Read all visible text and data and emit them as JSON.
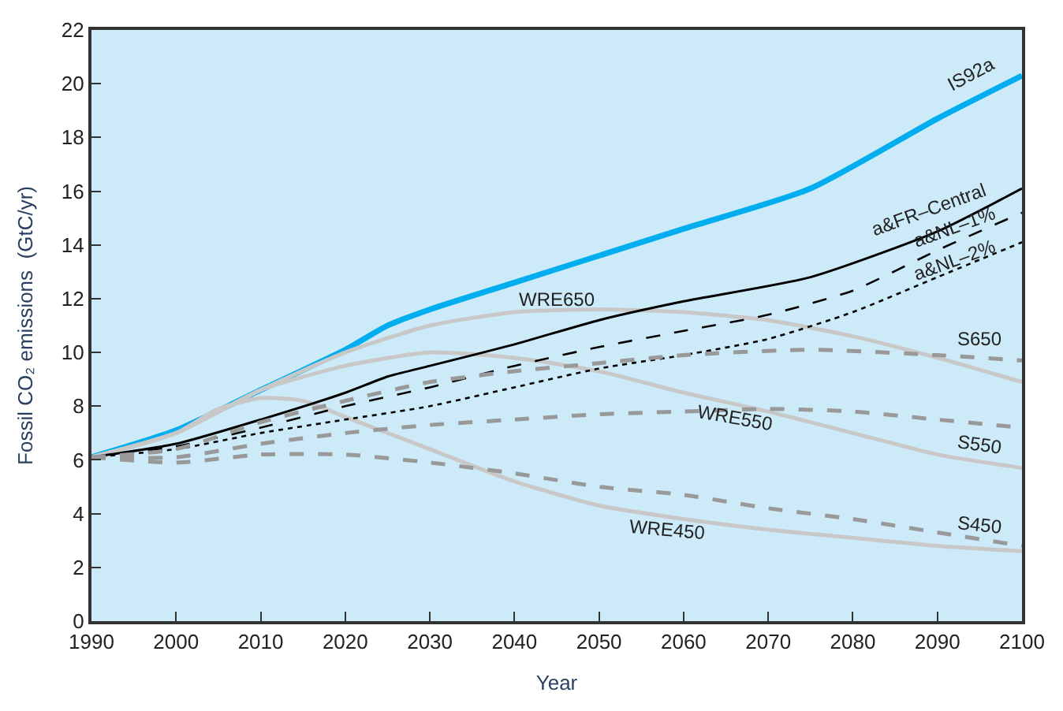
{
  "chart_data": {
    "type": "line",
    "xlabel": "Year",
    "ylabel": "Fossil CO₂ emissions  (GtC/yr)",
    "xlim": [
      1990,
      2100
    ],
    "xticks": [
      1990,
      2000,
      2010,
      2020,
      2030,
      2040,
      2050,
      2060,
      2070,
      2080,
      2090,
      2100
    ],
    "ylim": [
      0,
      22
    ],
    "yticks": [
      0,
      2,
      4,
      6,
      8,
      10,
      12,
      14,
      16,
      18,
      20,
      22
    ],
    "grid": false,
    "legend": false,
    "marker": "none",
    "series": [
      {
        "name": "IS92a",
        "color": "#00aeef",
        "line_style": "solid",
        "x": [
          1990,
          2000,
          2010,
          2020,
          2025,
          2030,
          2040,
          2050,
          2060,
          2075,
          2090,
          2100
        ],
        "values": [
          6.1,
          7.1,
          8.6,
          10.1,
          11.0,
          11.6,
          12.6,
          13.6,
          14.6,
          16.1,
          18.7,
          20.3
        ]
      },
      {
        "name": "WRE650",
        "color": "#c8c8c8",
        "line_style": "solid",
        "x": [
          1990,
          2000,
          2010,
          2020,
          2030,
          2040,
          2050,
          2060,
          2070,
          2080,
          2090,
          2100
        ],
        "values": [
          6.1,
          7.0,
          8.6,
          10.0,
          11.0,
          11.5,
          11.6,
          11.5,
          11.2,
          10.6,
          9.8,
          8.9
        ]
      },
      {
        "name": "WRE550",
        "color": "#c8c8c8",
        "line_style": "solid",
        "x": [
          1990,
          2000,
          2010,
          2020,
          2030,
          2040,
          2050,
          2060,
          2070,
          2080,
          2090,
          2100
        ],
        "values": [
          6.1,
          7.0,
          8.6,
          9.5,
          10.0,
          9.8,
          9.3,
          8.5,
          7.8,
          7.0,
          6.2,
          5.7
        ]
      },
      {
        "name": "WRE450",
        "color": "#c8c8c8",
        "line_style": "solid",
        "x": [
          1990,
          2000,
          2005,
          2010,
          2015,
          2020,
          2030,
          2040,
          2050,
          2060,
          2070,
          2080,
          2090,
          2100
        ],
        "values": [
          6.1,
          7.0,
          7.9,
          8.3,
          8.2,
          7.6,
          6.4,
          5.2,
          4.3,
          3.8,
          3.4,
          3.1,
          2.8,
          2.6
        ]
      },
      {
        "name": "a&FR–Central",
        "color": "#000000",
        "line_style": "solid",
        "x": [
          1990,
          2000,
          2010,
          2020,
          2025,
          2030,
          2040,
          2050,
          2060,
          2075,
          2090,
          2100
        ],
        "values": [
          6.1,
          6.6,
          7.5,
          8.5,
          9.1,
          9.5,
          10.3,
          11.2,
          11.9,
          12.8,
          14.5,
          16.1
        ]
      },
      {
        "name": "a&NL–1%",
        "color": "#000000",
        "line_style": "dashed",
        "x": [
          1990,
          2000,
          2010,
          2020,
          2030,
          2040,
          2050,
          2060,
          2070,
          2080,
          2090,
          2100
        ],
        "values": [
          6.1,
          6.5,
          7.2,
          8.0,
          8.7,
          9.5,
          10.2,
          10.8,
          11.4,
          12.3,
          13.8,
          15.2
        ]
      },
      {
        "name": "a&NL–2%",
        "color": "#000000",
        "line_style": "dotted",
        "x": [
          1990,
          2000,
          2010,
          2020,
          2030,
          2040,
          2050,
          2060,
          2070,
          2080,
          2090,
          2100
        ],
        "values": [
          6.1,
          6.4,
          7.0,
          7.5,
          8.0,
          8.7,
          9.4,
          9.9,
          10.5,
          11.5,
          12.8,
          14.1
        ]
      },
      {
        "name": "S650",
        "color": "#999999",
        "line_style": "dashed",
        "x": [
          1990,
          2000,
          2010,
          2020,
          2030,
          2040,
          2050,
          2060,
          2075,
          2090,
          2100
        ],
        "values": [
          6.1,
          6.4,
          7.4,
          8.2,
          8.9,
          9.3,
          9.6,
          9.9,
          10.1,
          9.9,
          9.7
        ]
      },
      {
        "name": "S550",
        "color": "#999999",
        "line_style": "dashed",
        "x": [
          1990,
          2000,
          2010,
          2020,
          2030,
          2040,
          2050,
          2060,
          2070,
          2080,
          2090,
          2100
        ],
        "values": [
          6.1,
          6.1,
          6.6,
          7.0,
          7.3,
          7.5,
          7.7,
          7.8,
          7.9,
          7.8,
          7.5,
          7.2
        ]
      },
      {
        "name": "S450",
        "color": "#999999",
        "line_style": "dashed",
        "x": [
          1990,
          2000,
          2010,
          2020,
          2030,
          2040,
          2050,
          2060,
          2070,
          2080,
          2090,
          2100
        ],
        "values": [
          6.1,
          5.9,
          6.2,
          6.2,
          5.9,
          5.5,
          5.0,
          4.7,
          4.2,
          3.8,
          3.3,
          2.8
        ]
      }
    ]
  }
}
